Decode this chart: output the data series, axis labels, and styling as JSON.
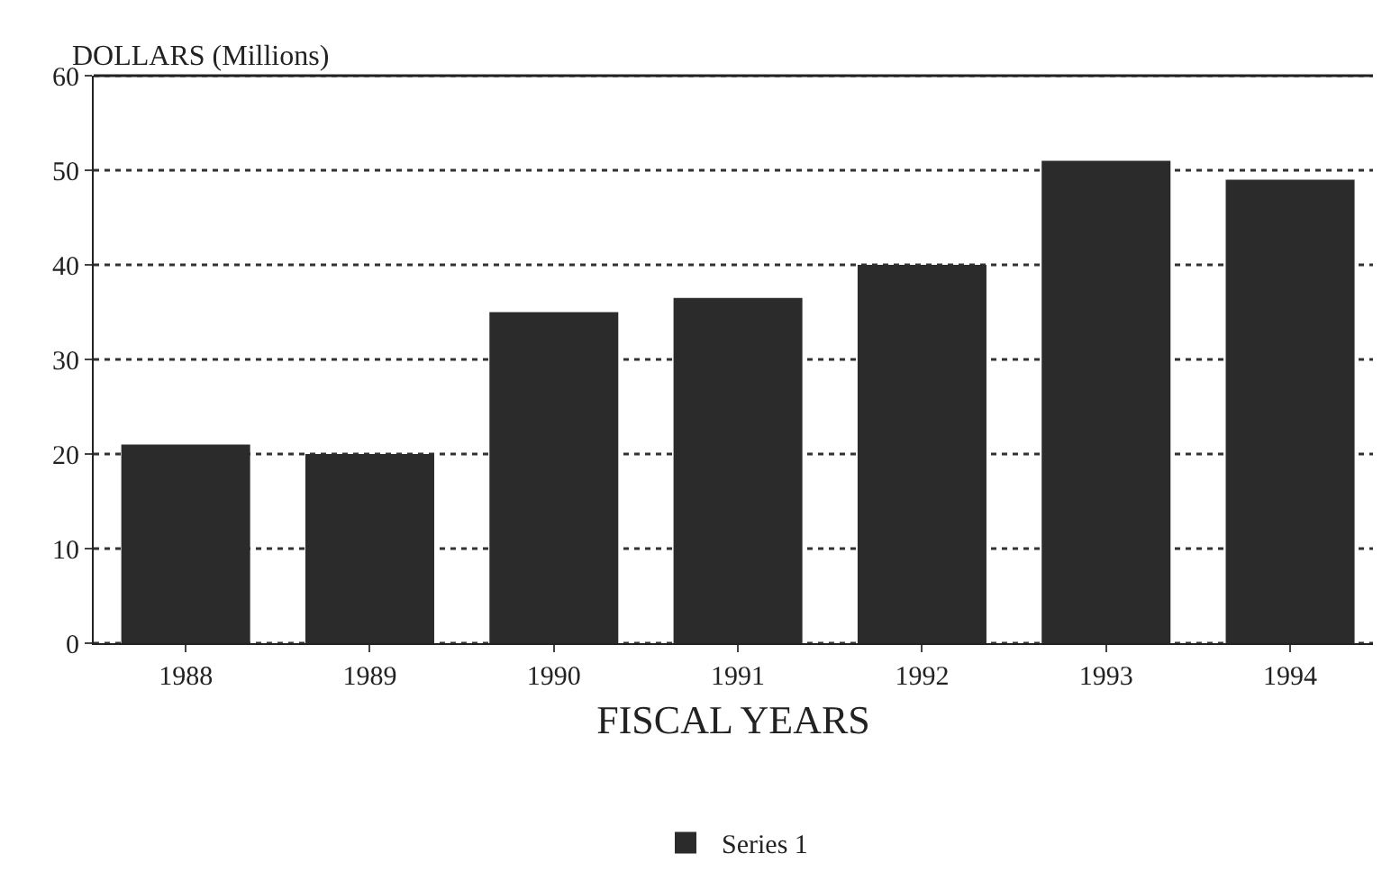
{
  "chart_data": {
    "type": "bar",
    "ylabel": "DOLLARS (Millions)",
    "xlabel": "FISCAL YEARS",
    "categories": [
      "1988",
      "1989",
      "1990",
      "1991",
      "1992",
      "1993",
      "1994"
    ],
    "series": [
      {
        "name": "Series 1",
        "color": "#2b2b2b",
        "values": [
          21,
          20,
          35,
          36.5,
          40,
          51,
          49
        ]
      }
    ],
    "ylim": [
      0,
      60
    ],
    "yticks": [
      0,
      10,
      20,
      30,
      40,
      50,
      60
    ],
    "grid": "y",
    "line_style": "dotted",
    "legend": "bottom"
  }
}
